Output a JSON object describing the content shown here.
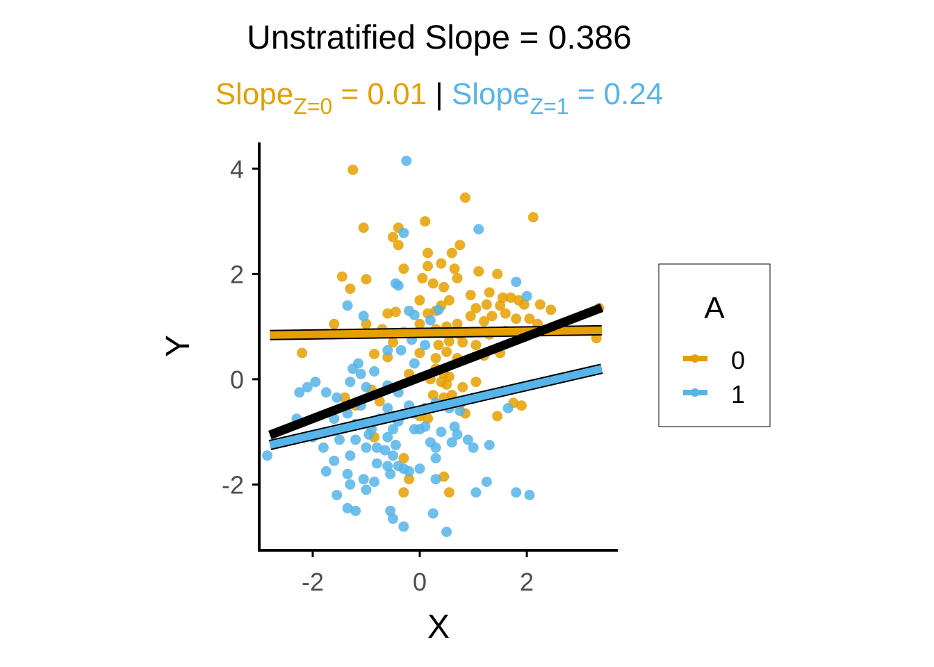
{
  "chart_data": {
    "type": "scatter",
    "title": "Unstratified Slope = 0.386",
    "subtitle": {
      "z0": {
        "base": "Slope",
        "sub": "Z=0",
        "rest": " = 0.01"
      },
      "separator": " | ",
      "z1": {
        "base": "Slope",
        "sub": "Z=1",
        "rest": " = 0.24"
      }
    },
    "xlabel": "X",
    "ylabel": "Y",
    "xlim": [
      -3.0,
      3.7
    ],
    "ylim": [
      -3.25,
      4.5
    ],
    "xticks": [
      -2,
      0,
      2
    ],
    "yticks": [
      -2,
      0,
      2,
      4
    ],
    "xtick_labels": [
      "-2",
      "0",
      "2"
    ],
    "ytick_labels": [
      "-2",
      "0",
      "2",
      "4"
    ],
    "legend": {
      "title": "A",
      "position": "right",
      "entries": [
        "0",
        "1"
      ]
    },
    "colors": {
      "0": "#E69F00",
      "1": "#56B4E9",
      "overall": "#000000",
      "axis": "#000000",
      "tick_label": "#4d4d4d"
    },
    "lines": [
      {
        "name": "0",
        "x": [
          -2.8,
          3.4
        ],
        "y": [
          0.84,
          0.93
        ]
      },
      {
        "name": "1",
        "x": [
          -2.8,
          3.4
        ],
        "y": [
          -1.25,
          0.2
        ]
      },
      {
        "name": "overall",
        "x": [
          -2.8,
          3.4
        ],
        "y": [
          -1.06,
          1.36
        ]
      }
    ],
    "series": [
      {
        "name": "0",
        "points": [
          [
            -1.25,
            3.98
          ],
          [
            0.85,
            3.45
          ],
          [
            2.12,
            3.08
          ],
          [
            -1.05,
            2.88
          ],
          [
            -0.4,
            2.88
          ],
          [
            0.1,
            3.0
          ],
          [
            -0.4,
            2.55
          ],
          [
            -0.5,
            2.7
          ],
          [
            0.15,
            2.4
          ],
          [
            0.75,
            2.55
          ],
          [
            0.6,
            2.4
          ],
          [
            0.4,
            2.2
          ],
          [
            1.1,
            2.05
          ],
          [
            1.45,
            2.0
          ],
          [
            0.65,
            2.1
          ],
          [
            -1.45,
            1.95
          ],
          [
            -1.0,
            1.9
          ],
          [
            -1.3,
            1.72
          ],
          [
            0.05,
            1.92
          ],
          [
            0.25,
            1.82
          ],
          [
            0.45,
            1.75
          ],
          [
            0.7,
            1.92
          ],
          [
            0.15,
            2.15
          ],
          [
            -0.3,
            2.1
          ],
          [
            0.95,
            1.6
          ],
          [
            1.3,
            1.65
          ],
          [
            1.55,
            1.55
          ],
          [
            1.25,
            1.42
          ],
          [
            1.05,
            1.35
          ],
          [
            1.5,
            1.4
          ],
          [
            1.7,
            1.55
          ],
          [
            1.85,
            1.5
          ],
          [
            1.95,
            1.42
          ],
          [
            2.25,
            1.42
          ],
          [
            2.45,
            1.32
          ],
          [
            0.4,
            1.4
          ],
          [
            0.55,
            1.5
          ],
          [
            0.3,
            1.3
          ],
          [
            0.0,
            1.5
          ],
          [
            -0.45,
            1.28
          ],
          [
            -0.6,
            1.25
          ],
          [
            0.15,
            1.25
          ],
          [
            0.7,
            1.05
          ],
          [
            0.95,
            1.2
          ],
          [
            1.2,
            1.1
          ],
          [
            1.35,
            1.2
          ],
          [
            1.6,
            1.25
          ],
          [
            1.8,
            1.15
          ],
          [
            2.05,
            1.15
          ],
          [
            2.2,
            1.05
          ],
          [
            -1.6,
            1.05
          ],
          [
            -1.0,
            1.05
          ],
          [
            -0.7,
            0.95
          ],
          [
            -0.3,
            0.9
          ],
          [
            0.0,
            1.05
          ],
          [
            0.3,
            0.95
          ],
          [
            0.5,
            1.0
          ],
          [
            0.75,
            0.85
          ],
          [
            1.0,
            0.9
          ],
          [
            1.3,
            0.85
          ],
          [
            1.6,
            0.92
          ],
          [
            3.35,
            1.35
          ],
          [
            3.3,
            0.78
          ],
          [
            0.55,
            0.72
          ],
          [
            0.8,
            0.7
          ],
          [
            1.05,
            0.65
          ],
          [
            0.35,
            0.65
          ],
          [
            -0.5,
            0.7
          ],
          [
            -2.2,
            0.5
          ],
          [
            -0.85,
            0.48
          ],
          [
            -0.6,
            0.42
          ],
          [
            0.0,
            0.5
          ],
          [
            0.3,
            0.4
          ],
          [
            0.5,
            0.52
          ],
          [
            0.7,
            0.4
          ],
          [
            1.2,
            0.45
          ],
          [
            1.5,
            0.5
          ],
          [
            0.3,
            0.2
          ],
          [
            0.45,
            0.1
          ],
          [
            0.55,
            0.05
          ],
          [
            0.2,
            0.0
          ],
          [
            0.4,
            -0.05
          ],
          [
            0.5,
            -0.1
          ],
          [
            0.8,
            -0.15
          ],
          [
            1.05,
            -0.05
          ],
          [
            0.25,
            -0.3
          ],
          [
            0.45,
            -0.35
          ],
          [
            0.6,
            -0.3
          ],
          [
            0.75,
            -0.48
          ],
          [
            -0.2,
            0.1
          ],
          [
            -0.75,
            -0.42
          ],
          [
            -0.9,
            -0.2
          ],
          [
            -1.4,
            -0.35
          ],
          [
            -1.2,
            -0.5
          ],
          [
            1.45,
            -0.7
          ],
          [
            1.75,
            -0.45
          ],
          [
            1.9,
            -0.5
          ],
          [
            0.15,
            -0.75
          ],
          [
            0.85,
            -0.65
          ],
          [
            -0.3,
            -1.5
          ],
          [
            -0.2,
            -1.9
          ],
          [
            -0.3,
            -2.15
          ],
          [
            0.45,
            -1.85
          ],
          [
            0.55,
            -2.15
          ],
          [
            -0.85,
            -1.1
          ],
          [
            0.0,
            -0.7
          ]
        ]
      },
      {
        "name": "1",
        "points": [
          [
            -0.25,
            4.15
          ],
          [
            -0.3,
            2.78
          ],
          [
            1.1,
            2.85
          ],
          [
            -0.45,
            1.82
          ],
          [
            -0.4,
            1.78
          ],
          [
            1.8,
            1.85
          ],
          [
            2.0,
            1.58
          ],
          [
            -1.35,
            1.4
          ],
          [
            -1.05,
            1.2
          ],
          [
            -0.2,
            1.3
          ],
          [
            -0.1,
            1.22
          ],
          [
            0.2,
            1.12
          ],
          [
            0.35,
            1.32
          ],
          [
            -0.15,
            0.75
          ],
          [
            0.1,
            0.65
          ],
          [
            -0.6,
            0.55
          ],
          [
            -0.35,
            0.55
          ],
          [
            -0.1,
            0.3
          ],
          [
            -1.15,
            0.3
          ],
          [
            -1.25,
            0.2
          ],
          [
            -1.1,
            0.1
          ],
          [
            -0.85,
            0.15
          ],
          [
            -1.3,
            -0.05
          ],
          [
            -1.0,
            -0.15
          ],
          [
            -0.6,
            -0.12
          ],
          [
            -0.4,
            -0.25
          ],
          [
            -1.95,
            -0.05
          ],
          [
            -2.1,
            -0.15
          ],
          [
            -2.25,
            -0.25
          ],
          [
            -1.75,
            -0.25
          ],
          [
            -1.55,
            -0.35
          ],
          [
            -1.1,
            -0.5
          ],
          [
            -1.35,
            -0.65
          ],
          [
            -1.6,
            -0.75
          ],
          [
            -0.6,
            -0.55
          ],
          [
            -0.2,
            -0.5
          ],
          [
            -0.1,
            -0.65
          ],
          [
            0.1,
            -0.55
          ],
          [
            0.3,
            -0.45
          ],
          [
            0.55,
            -0.55
          ],
          [
            0.75,
            -0.6
          ],
          [
            -1.2,
            -0.85
          ],
          [
            -0.9,
            -0.95
          ],
          [
            -0.75,
            -0.75
          ],
          [
            -0.4,
            -0.8
          ],
          [
            -0.1,
            -0.95
          ],
          [
            0.1,
            -0.9
          ],
          [
            -1.5,
            -1.15
          ],
          [
            -1.2,
            -1.15
          ],
          [
            -0.95,
            -1.05
          ],
          [
            -0.6,
            -1.1
          ],
          [
            -0.45,
            -1.25
          ],
          [
            -1.9,
            -1.05
          ],
          [
            -2.0,
            -1.1
          ],
          [
            -1.8,
            -1.3
          ],
          [
            -1.0,
            -1.3
          ],
          [
            -0.8,
            -1.3
          ],
          [
            -0.65,
            -1.35
          ],
          [
            -0.5,
            -1.45
          ],
          [
            0.2,
            -1.2
          ],
          [
            0.3,
            -1.3
          ],
          [
            0.6,
            -1.2
          ],
          [
            0.9,
            -1.15
          ],
          [
            1.0,
            -1.3
          ],
          [
            1.3,
            -1.25
          ],
          [
            -1.6,
            -1.55
          ],
          [
            -1.3,
            -1.45
          ],
          [
            -0.8,
            -1.6
          ],
          [
            -0.6,
            -1.65
          ],
          [
            -0.4,
            -1.65
          ],
          [
            -0.2,
            -1.75
          ],
          [
            0.0,
            -1.7
          ],
          [
            0.3,
            -1.5
          ],
          [
            -1.75,
            -1.75
          ],
          [
            -1.35,
            -1.8
          ],
          [
            -1.05,
            -1.9
          ],
          [
            -0.85,
            -1.95
          ],
          [
            -0.55,
            -1.8
          ],
          [
            0.3,
            -1.9
          ],
          [
            -1.55,
            -2.2
          ],
          [
            -1.3,
            -2.0
          ],
          [
            -1.0,
            -2.1
          ],
          [
            -1.35,
            -2.45
          ],
          [
            -1.2,
            -2.5
          ],
          [
            -0.55,
            -2.5
          ],
          [
            -0.5,
            -2.65
          ],
          [
            -0.3,
            -2.8
          ],
          [
            0.25,
            -2.55
          ],
          [
            0.5,
            -2.9
          ],
          [
            1.05,
            -2.15
          ],
          [
            1.25,
            -1.95
          ],
          [
            1.8,
            -2.15
          ],
          [
            2.05,
            -2.2
          ],
          [
            -2.85,
            -1.45
          ],
          [
            -0.3,
            -1.7
          ],
          [
            0.0,
            -0.95
          ],
          [
            0.4,
            -1.0
          ],
          [
            0.65,
            -0.9
          ],
          [
            0.7,
            -1.05
          ],
          [
            -2.3,
            -0.75
          ],
          [
            1.65,
            -0.55
          ],
          [
            -0.5,
            -0.95
          ]
        ]
      }
    ]
  }
}
